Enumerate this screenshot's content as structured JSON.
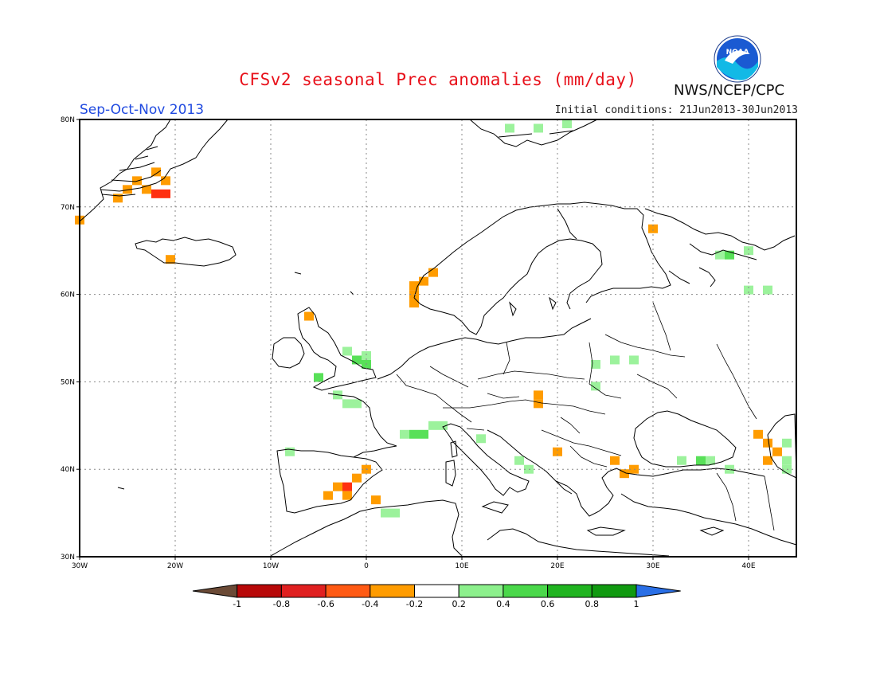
{
  "header": {
    "title": "CFSv2 seasonal Prec anomalies (mm/day)",
    "season": "Sep-Oct-Nov 2013",
    "initial_conditions": "Initial conditions: 21Jun2013-30Jun2013",
    "agency": "NWS/NCEP/CPC",
    "logo_text": "NOAA"
  },
  "map": {
    "region": "Europe",
    "lon_range": [
      -30,
      45
    ],
    "lat_range": [
      30,
      80
    ],
    "lat_labels": [
      "80N",
      "70N",
      "60N",
      "50N",
      "40N",
      "30N"
    ],
    "lon_labels": [
      "30W",
      "20W",
      "10W",
      "0",
      "10E",
      "20E",
      "30E",
      "40E"
    ],
    "grid": "dotted"
  },
  "legend": {
    "tick_labels": [
      "-1",
      "-0.8",
      "-0.6",
      "-0.4",
      "-0.2",
      "0.2",
      "0.4",
      "0.6",
      "0.8",
      "1"
    ],
    "colors": [
      "#6b4a36",
      "#b80808",
      "#e02020",
      "#ff5a14",
      "#ff9c00",
      "#ffffff",
      "#8cf08c",
      "#4ad84a",
      "#20b420",
      "#109a10",
      "#2a6fe6"
    ]
  },
  "anomalies": [
    {
      "lon": -30,
      "lat": 68.5,
      "level": -0.3
    },
    {
      "lon": -26,
      "lat": 71,
      "level": -0.3
    },
    {
      "lon": -25,
      "lat": 72,
      "level": -0.3
    },
    {
      "lon": -24,
      "lat": 73,
      "level": -0.3
    },
    {
      "lon": -23,
      "lat": 72,
      "level": -0.3
    },
    {
      "lon": -22,
      "lat": 74,
      "level": -0.3
    },
    {
      "lon": -22,
      "lat": 71.5,
      "level": -0.5
    },
    {
      "lon": -21,
      "lat": 73,
      "level": -0.3
    },
    {
      "lon": -21,
      "lat": 71.5,
      "level": -0.5
    },
    {
      "lon": -20.5,
      "lat": 64,
      "level": -0.3
    },
    {
      "lon": -6,
      "lat": 57.5,
      "level": -0.3
    },
    {
      "lon": -2,
      "lat": 53.5,
      "level": 0.3
    },
    {
      "lon": -1,
      "lat": 52.5,
      "level": 0.5
    },
    {
      "lon": 0,
      "lat": 52,
      "level": 0.5
    },
    {
      "lon": 0,
      "lat": 53,
      "level": 0.3
    },
    {
      "lon": -5,
      "lat": 50.5,
      "level": 0.5
    },
    {
      "lon": -3,
      "lat": 48.5,
      "level": 0.3
    },
    {
      "lon": -2,
      "lat": 47.5,
      "level": 0.3
    },
    {
      "lon": -1,
      "lat": 47.5,
      "level": 0.3
    },
    {
      "lon": 4,
      "lat": 44,
      "level": 0.3
    },
    {
      "lon": 5,
      "lat": 44,
      "level": 0.5
    },
    {
      "lon": 6,
      "lat": 44,
      "level": 0.5
    },
    {
      "lon": 7,
      "lat": 45,
      "level": 0.3
    },
    {
      "lon": 8,
      "lat": 45,
      "level": 0.3
    },
    {
      "lon": 12,
      "lat": 43.5,
      "level": 0.3
    },
    {
      "lon": 16,
      "lat": 41,
      "level": 0.3
    },
    {
      "lon": 17,
      "lat": 40,
      "level": 0.3
    },
    {
      "lon": 2,
      "lat": 35,
      "level": 0.3
    },
    {
      "lon": 3,
      "lat": 35,
      "level": 0.3
    },
    {
      "lon": -8,
      "lat": 42,
      "level": 0.3
    },
    {
      "lon": 1,
      "lat": 36.5,
      "level": -0.3
    },
    {
      "lon": 0,
      "lat": 40,
      "level": -0.3
    },
    {
      "lon": -1,
      "lat": 39,
      "level": -0.3
    },
    {
      "lon": -2,
      "lat": 38,
      "level": -0.5
    },
    {
      "lon": -3,
      "lat": 38,
      "level": -0.3
    },
    {
      "lon": -4,
      "lat": 37,
      "level": -0.3
    },
    {
      "lon": -2,
      "lat": 37,
      "level": -0.3
    },
    {
      "lon": 7,
      "lat": 62.5,
      "level": -0.3
    },
    {
      "lon": 6,
      "lat": 61.5,
      "level": -0.3
    },
    {
      "lon": 5,
      "lat": 61,
      "level": -0.3
    },
    {
      "lon": 5,
      "lat": 60,
      "level": -0.3
    },
    {
      "lon": 5,
      "lat": 59,
      "level": -0.3
    },
    {
      "lon": 15,
      "lat": 79,
      "level": 0.3
    },
    {
      "lon": 18,
      "lat": 79,
      "level": 0.3
    },
    {
      "lon": 21,
      "lat": 79.5,
      "level": 0.3
    },
    {
      "lon": 24,
      "lat": 52,
      "level": 0.3
    },
    {
      "lon": 26,
      "lat": 52.5,
      "level": 0.3
    },
    {
      "lon": 28,
      "lat": 52.5,
      "level": 0.3
    },
    {
      "lon": 24,
      "lat": 49.5,
      "level": 0.3
    },
    {
      "lon": 18,
      "lat": 48.5,
      "level": -0.3
    },
    {
      "lon": 18,
      "lat": 47.5,
      "level": -0.3
    },
    {
      "lon": 20,
      "lat": 42,
      "level": -0.3
    },
    {
      "lon": 26,
      "lat": 41,
      "level": -0.3
    },
    {
      "lon": 28,
      "lat": 40,
      "level": -0.3
    },
    {
      "lon": 27,
      "lat": 39.5,
      "level": -0.3
    },
    {
      "lon": 30,
      "lat": 67.5,
      "level": -0.3
    },
    {
      "lon": 37,
      "lat": 64.5,
      "level": 0.3
    },
    {
      "lon": 38,
      "lat": 64.5,
      "level": 0.5
    },
    {
      "lon": 40,
      "lat": 65,
      "level": 0.3
    },
    {
      "lon": 40,
      "lat": 60.5,
      "level": 0.3
    },
    {
      "lon": 42,
      "lat": 60.5,
      "level": 0.3
    },
    {
      "lon": 33,
      "lat": 41,
      "level": 0.3
    },
    {
      "lon": 35,
      "lat": 41,
      "level": 0.5
    },
    {
      "lon": 36,
      "lat": 41,
      "level": 0.3
    },
    {
      "lon": 38,
      "lat": 40,
      "level": 0.3
    },
    {
      "lon": 41,
      "lat": 44,
      "level": -0.3
    },
    {
      "lon": 42,
      "lat": 43,
      "level": -0.3
    },
    {
      "lon": 43,
      "lat": 42,
      "level": -0.3
    },
    {
      "lon": 42,
      "lat": 41,
      "level": -0.3
    },
    {
      "lon": 44,
      "lat": 43,
      "level": 0.3
    },
    {
      "lon": 44,
      "lat": 41,
      "level": 0.3
    },
    {
      "lon": 44,
      "lat": 40,
      "level": 0.3
    }
  ]
}
